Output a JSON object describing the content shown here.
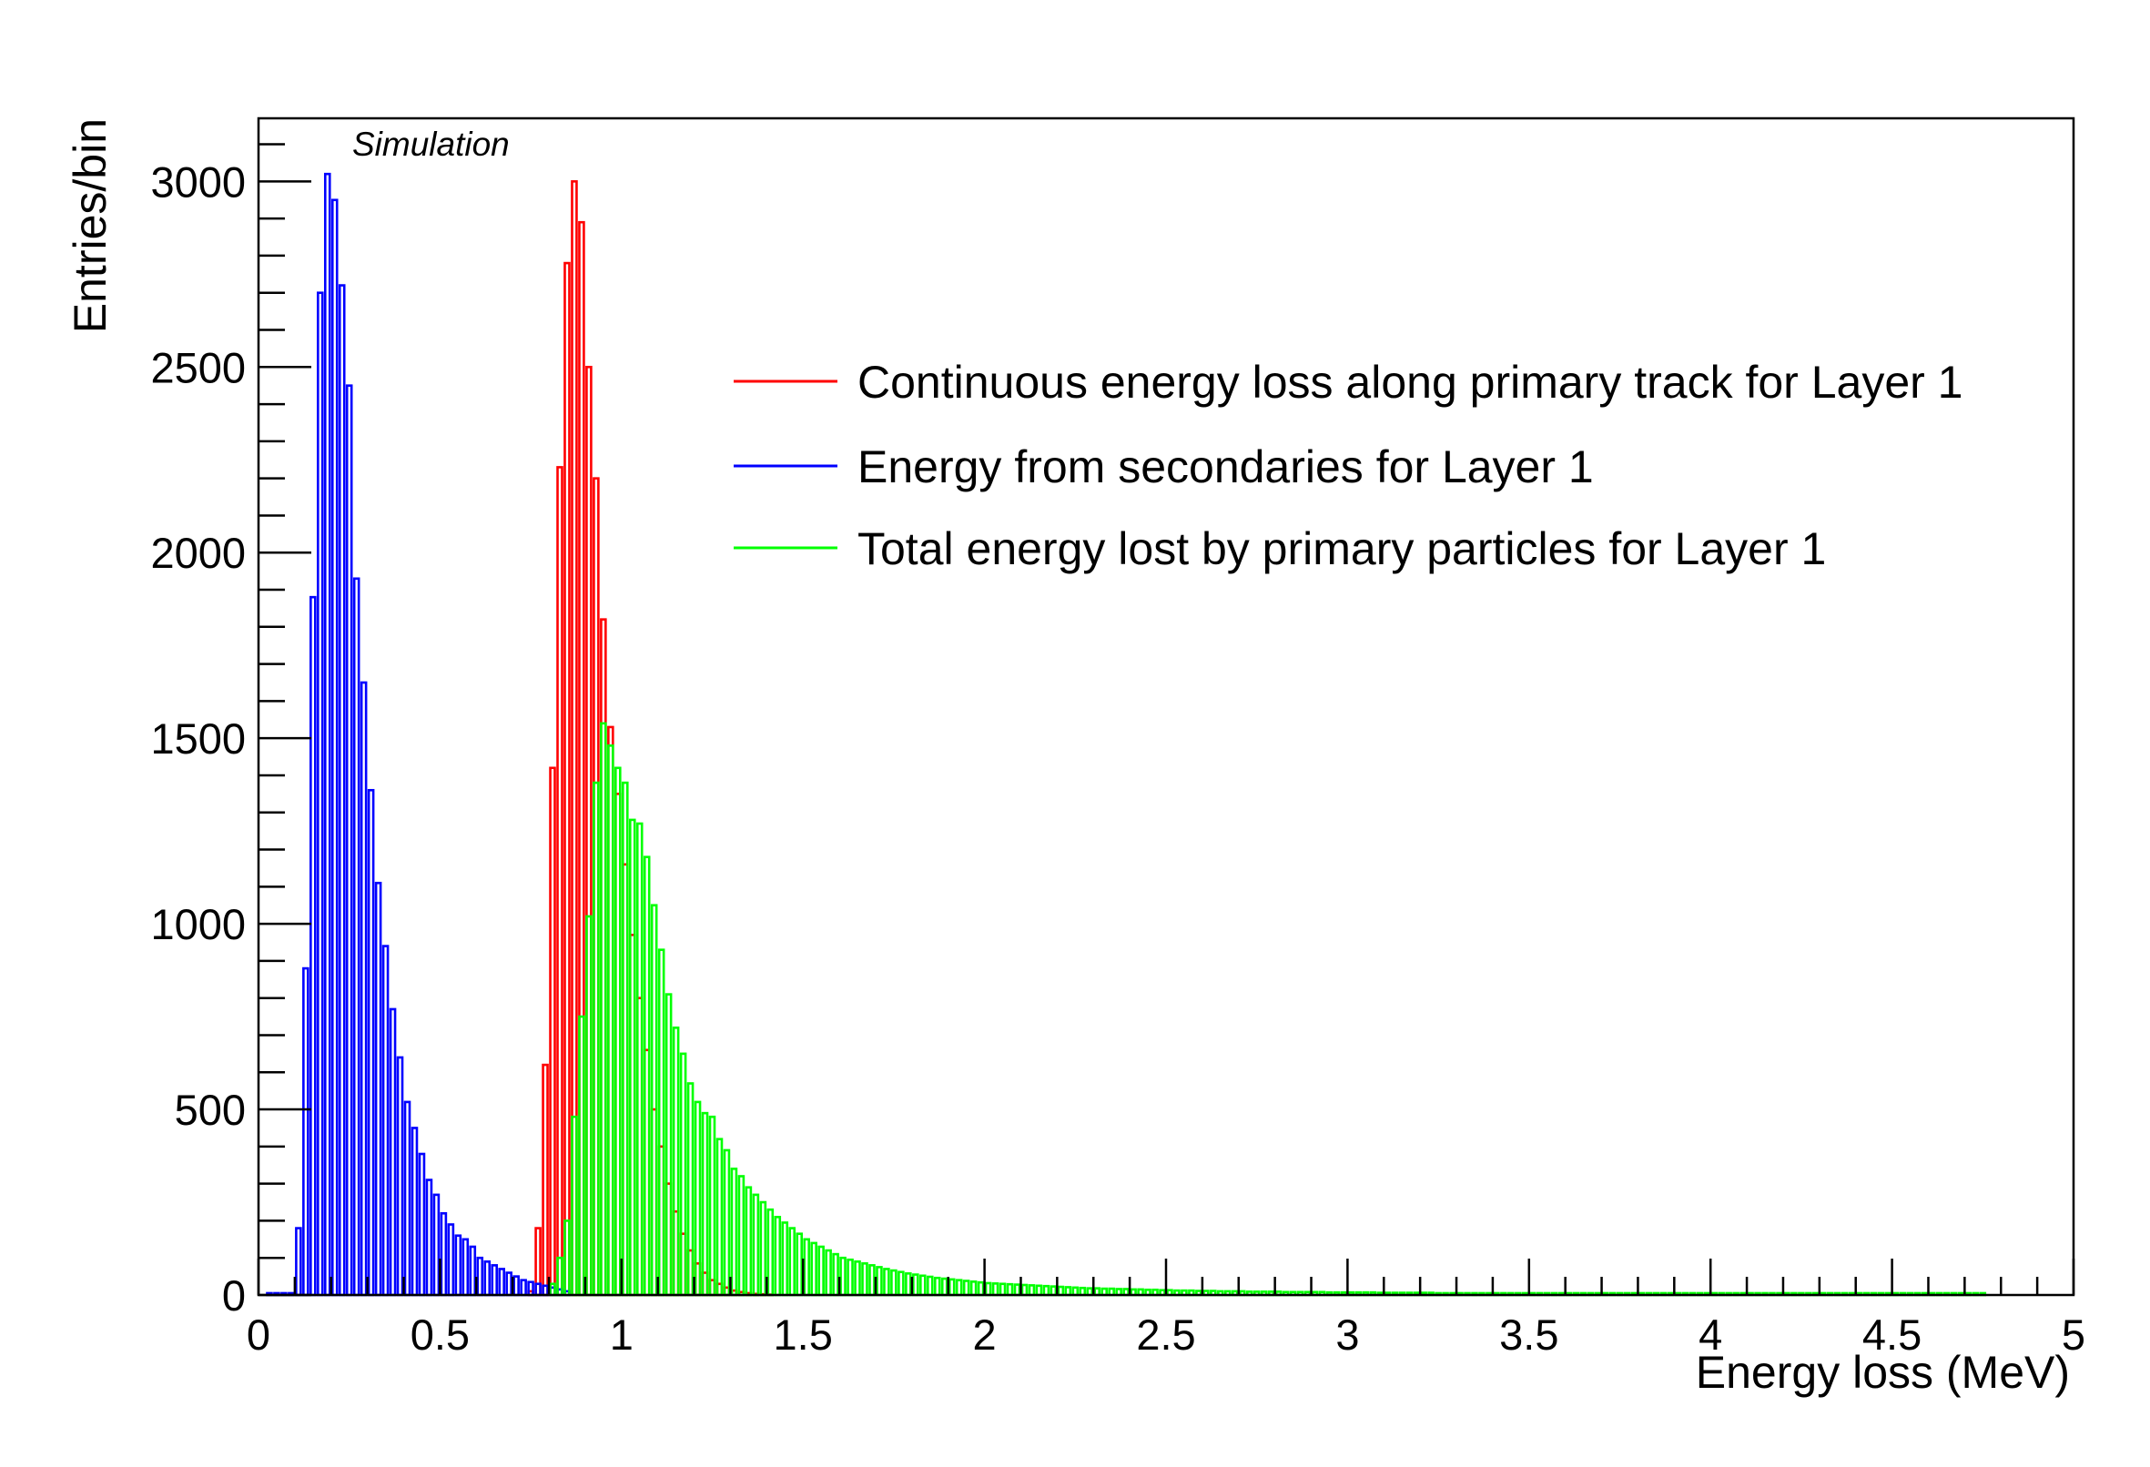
{
  "chart_data": {
    "type": "bar",
    "label": "Simulation",
    "xlabel": "Energy loss (MeV)",
    "ylabel": "Entries/bin",
    "xlim": [
      0,
      5
    ],
    "ylim": [
      0,
      3170
    ],
    "x_major_ticks": [
      "0",
      "0.5",
      "1",
      "1.5",
      "2",
      "2.5",
      "3",
      "3.5",
      "4",
      "4.5",
      "5"
    ],
    "y_major_ticks": [
      "0",
      "500",
      "1000",
      "1500",
      "2000",
      "2500",
      "3000"
    ],
    "grid": false,
    "legend_position": "top-right",
    "bin_width": 0.02,
    "series": [
      {
        "name": "Continuous energy loss along primary track for Layer 1",
        "color": "#ff0000",
        "bin_start": 0.74,
        "values": [
          10,
          180,
          620,
          1420,
          2230,
          2780,
          3000,
          2890,
          2500,
          2200,
          1820,
          1530,
          1350,
          1160,
          970,
          800,
          660,
          500,
          400,
          300,
          225,
          165,
          120,
          85,
          60,
          40,
          30,
          20,
          12,
          8,
          5,
          3,
          2,
          1
        ]
      },
      {
        "name": "Energy from secondaries for Layer 1",
        "color": "#0000ff",
        "bin_start": 0.02,
        "values": [
          5,
          5,
          5,
          5,
          180,
          880,
          1880,
          2700,
          3020,
          2950,
          2720,
          2450,
          1930,
          1650,
          1360,
          1110,
          940,
          770,
          640,
          520,
          450,
          380,
          310,
          270,
          220,
          190,
          160,
          150,
          130,
          100,
          90,
          80,
          70,
          60,
          50,
          40,
          35,
          30,
          25,
          20,
          15,
          10
        ]
      },
      {
        "name": "Total energy lost by primary particles for Layer 1",
        "color": "#00ff00",
        "bin_start": 0.8,
        "values": [
          30,
          100,
          200,
          480,
          750,
          1020,
          1380,
          1540,
          1480,
          1420,
          1380,
          1280,
          1270,
          1180,
          1050,
          930,
          810,
          720,
          650,
          570,
          520,
          490,
          480,
          420,
          390,
          340,
          320,
          290,
          270,
          250,
          230,
          210,
          195,
          180,
          165,
          150,
          140,
          130,
          120,
          110,
          100,
          95,
          90,
          85,
          80,
          75,
          70,
          66,
          62,
          58,
          55,
          52,
          49,
          46,
          44,
          42,
          40,
          38,
          36,
          34,
          32,
          31,
          30,
          29,
          28,
          27,
          26,
          25,
          24,
          23,
          22,
          21,
          20,
          19,
          18,
          18,
          17,
          17,
          16,
          16,
          15,
          15,
          14,
          14,
          13,
          13,
          12,
          12,
          12,
          11,
          11,
          11,
          10,
          10,
          10,
          10,
          9,
          9,
          9,
          9,
          9,
          8,
          8,
          8,
          8,
          8,
          8,
          7,
          7,
          7,
          7,
          7,
          7,
          7,
          6,
          6,
          6,
          6,
          6,
          6,
          6,
          6,
          5,
          5,
          5,
          5,
          5,
          5,
          5,
          5,
          5,
          5,
          5,
          5,
          5,
          5,
          5,
          5,
          5,
          5,
          5,
          5,
          5,
          5,
          5,
          5,
          5,
          5,
          5,
          5,
          5,
          5,
          5,
          5,
          5,
          5,
          5,
          5,
          5,
          5,
          5,
          5,
          5,
          5,
          5,
          5,
          5,
          5,
          5,
          5,
          5,
          5,
          5,
          5,
          5,
          5,
          5,
          5,
          5,
          5,
          5,
          5,
          5,
          5,
          5,
          5,
          5,
          5,
          5,
          5,
          5,
          5,
          5,
          5,
          5,
          5,
          5,
          5
        ]
      }
    ]
  }
}
